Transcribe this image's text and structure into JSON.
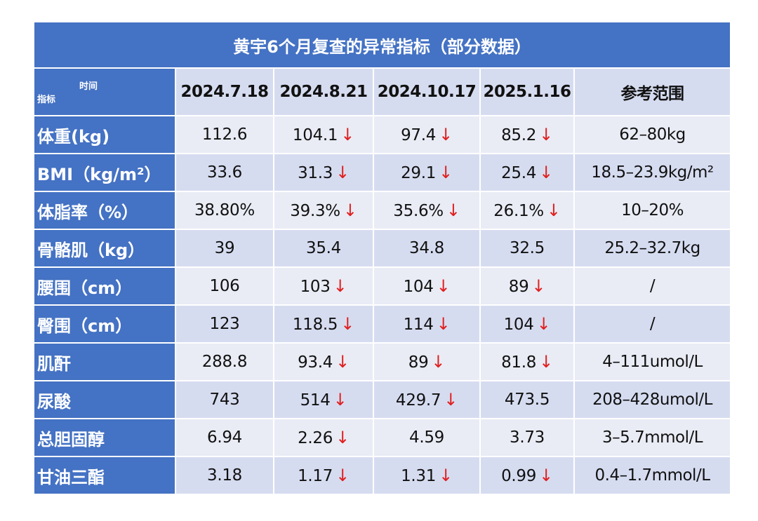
{
  "chart_data": {
    "type": "table",
    "title": "黄宇6个月复查的异常指标（部分数据）",
    "corner": {
      "column_header": "时间",
      "row_header": "指标"
    },
    "columns": [
      "2024.7.18",
      "2024.8.21",
      "2024.10.17",
      "2025.1.16",
      "参考范围"
    ],
    "decrease_marker": "↓",
    "rows": [
      {
        "label": "体重(kg)",
        "values": [
          "112.6",
          "104.1",
          "97.4",
          "85.2"
        ],
        "decrease": [
          false,
          true,
          true,
          true
        ],
        "range": "62–80kg"
      },
      {
        "label": "BMI（kg/m²）",
        "values": [
          "33.6",
          "31.3",
          "29.1",
          "25.4"
        ],
        "decrease": [
          false,
          true,
          true,
          true
        ],
        "range": "18.5–23.9kg/m²"
      },
      {
        "label": "体脂率（%）",
        "values": [
          "38.80%",
          "39.3%",
          "35.6%",
          "26.1%"
        ],
        "decrease": [
          false,
          true,
          true,
          true
        ],
        "range": "10–20%"
      },
      {
        "label": "骨骼肌（kg）",
        "values": [
          "39",
          "35.4",
          "34.8",
          "32.5"
        ],
        "decrease": [
          false,
          false,
          false,
          false
        ],
        "range": "25.2–32.7kg"
      },
      {
        "label": "腰围（cm）",
        "values": [
          "106",
          "103",
          "104",
          "89"
        ],
        "decrease": [
          false,
          true,
          true,
          true
        ],
        "range": "/"
      },
      {
        "label": "臀围（cm）",
        "values": [
          "123",
          "118.5",
          "114",
          "104"
        ],
        "decrease": [
          false,
          true,
          true,
          true
        ],
        "range": "/"
      },
      {
        "label": "肌酐",
        "values": [
          "288.8",
          "93.4",
          "89",
          "81.8"
        ],
        "decrease": [
          false,
          true,
          true,
          true
        ],
        "range": "4–111umol/L"
      },
      {
        "label": "尿酸",
        "values": [
          "743",
          "514",
          "429.7",
          "473.5"
        ],
        "decrease": [
          false,
          true,
          true,
          false
        ],
        "range": "208–428umol/L"
      },
      {
        "label": "总胆固醇",
        "values": [
          "6.94",
          "2.26",
          "4.59",
          "3.73"
        ],
        "decrease": [
          false,
          true,
          false,
          false
        ],
        "range": "3–5.7mmol/L"
      },
      {
        "label": "甘油三酯",
        "values": [
          "3.18",
          "1.17",
          "1.31",
          "0.99"
        ],
        "decrease": [
          false,
          true,
          true,
          true
        ],
        "range": "0.4–1.7mmol/L"
      }
    ]
  },
  "colors": {
    "header_blue": "#4472c4",
    "row_light": "#e9ecf5",
    "row_dark": "#d6dcf0",
    "arrow_red": "#e02020"
  }
}
